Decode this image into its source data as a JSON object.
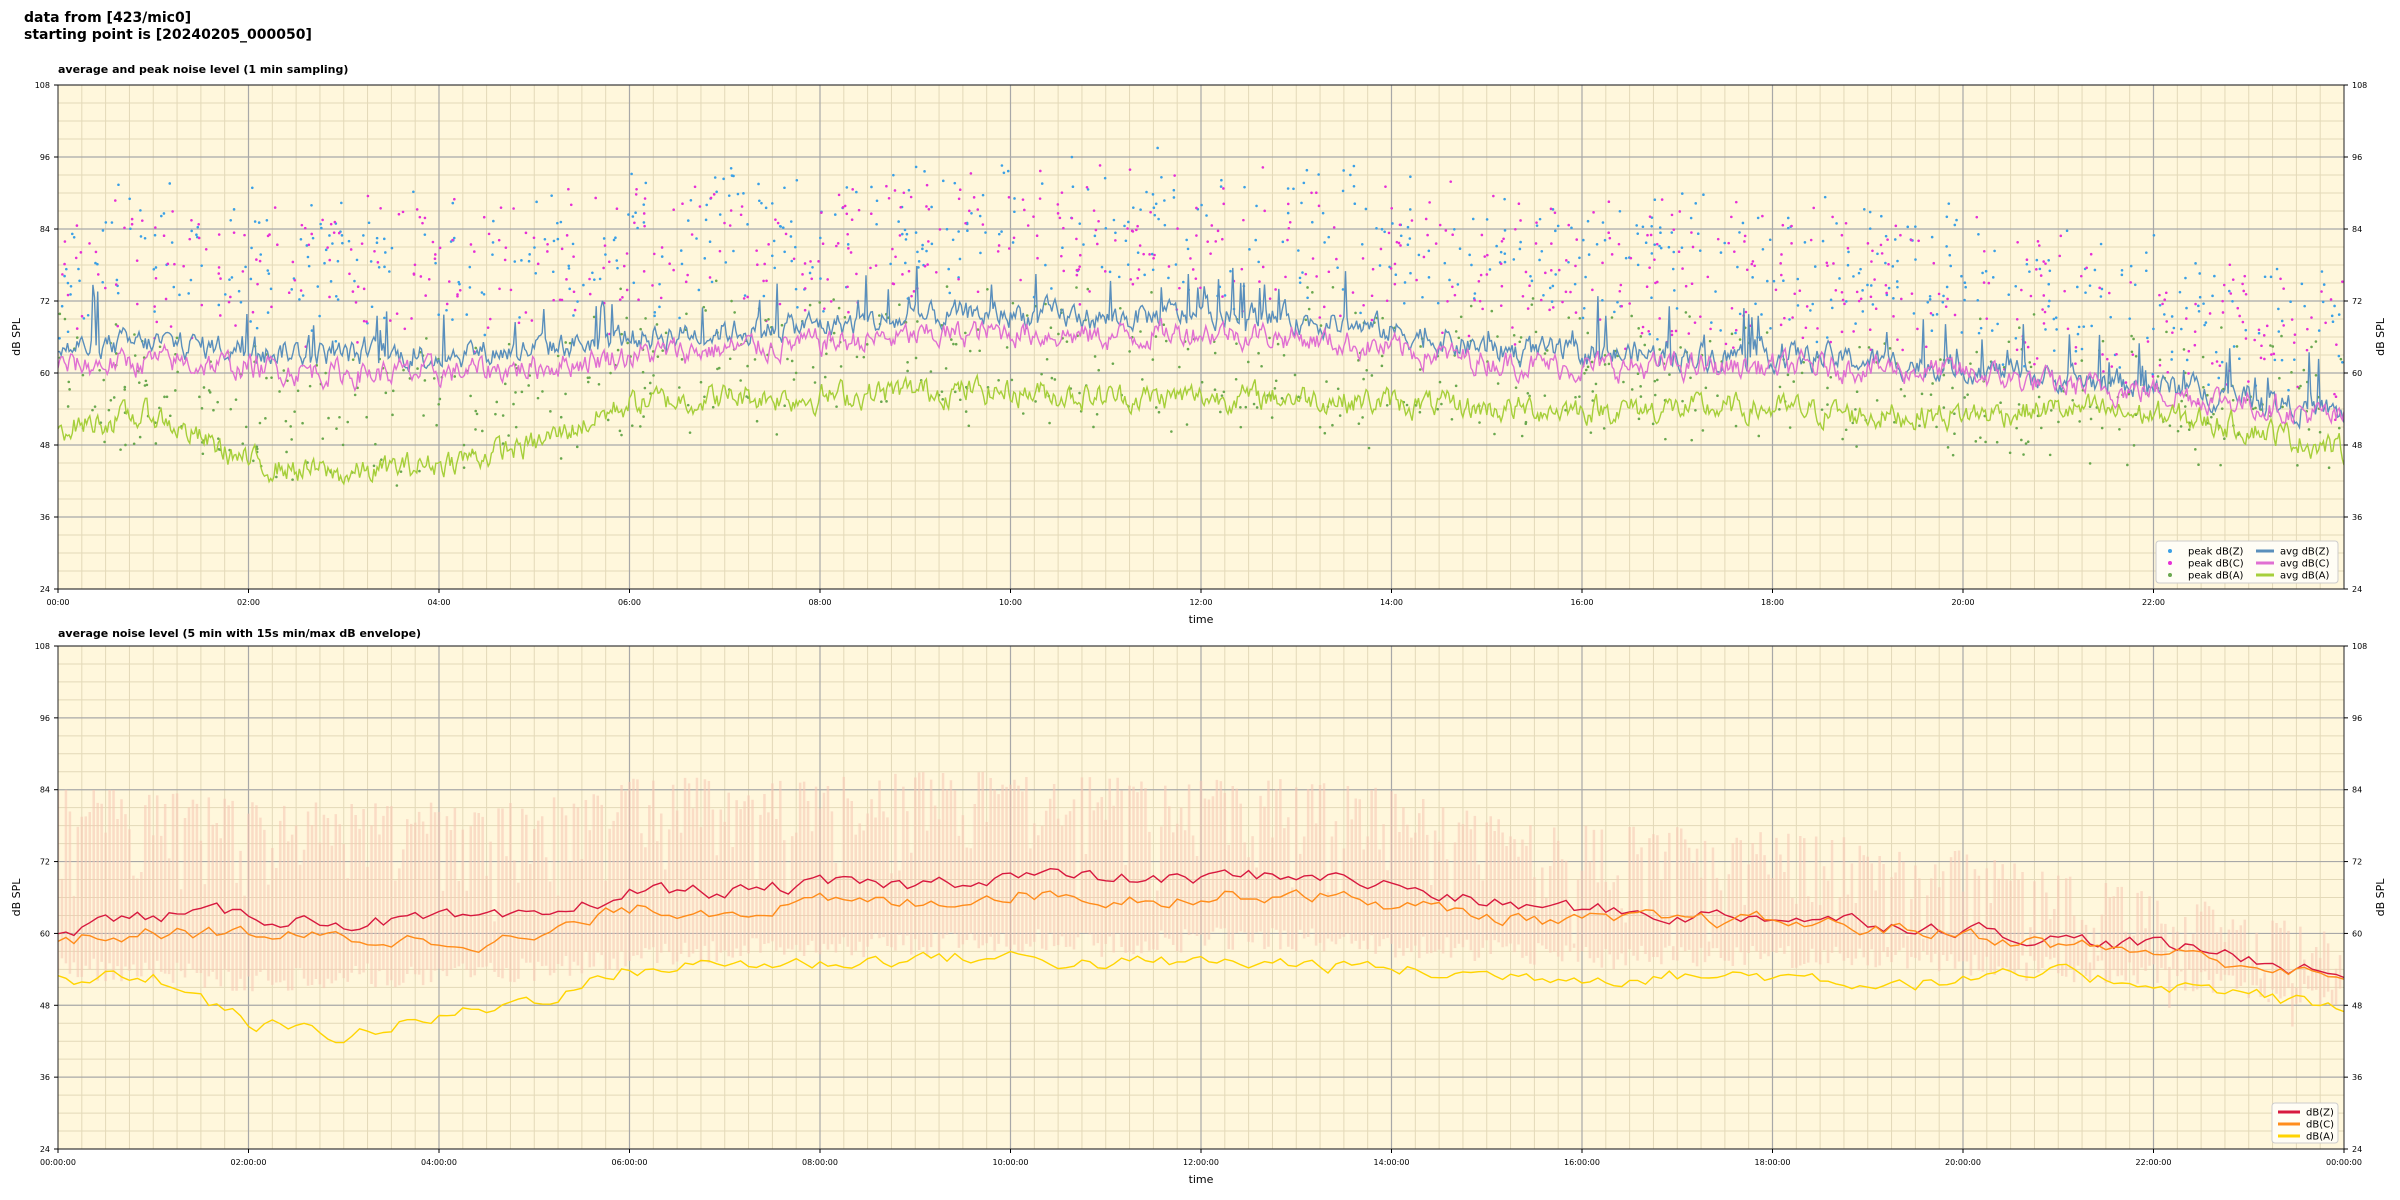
{
  "header": {
    "line1": "data from [423/mic0]",
    "line2": "starting point is [20240205_000050]"
  },
  "colors": {
    "background": "#fff7dc",
    "grid_major": "#a8a8a8",
    "grid_minor": "#e3d9b8",
    "z": "#5a8fbc",
    "c": "#e06fd2",
    "a": "#a6cf3a",
    "z2": "#d7193f",
    "c2": "#ff8c1a",
    "a2": "#ffd400",
    "envelope": "#f7c6b4"
  },
  "chart_data": [
    {
      "type": "line",
      "title": "average and peak noise level (1 min sampling)",
      "xlabel": "time",
      "ylabel": "dB SPL",
      "ylim": [
        24,
        108
      ],
      "yticks": [
        24,
        36,
        48,
        60,
        72,
        84,
        96,
        108
      ],
      "xlim_hours": [
        0,
        24
      ],
      "xtick_labels": [
        "00:00",
        "02:00",
        "04:00",
        "06:00",
        "08:00",
        "10:00",
        "12:00",
        "14:00",
        "16:00",
        "18:00",
        "20:00",
        "22:00"
      ],
      "grid": true,
      "legend_position": "bottom-right",
      "series": [
        {
          "name": "peak dB(Z)",
          "kind": "scatter",
          "color": "#3aa0e6",
          "x": [
            0,
            1,
            2,
            3,
            4,
            5,
            6,
            7,
            8,
            9,
            10,
            11,
            12,
            13,
            14,
            15,
            16,
            17,
            18,
            19,
            20,
            21,
            22,
            23,
            24
          ],
          "y": [
            79,
            80,
            80,
            78,
            79,
            79,
            81,
            82,
            83,
            84,
            85,
            84,
            84,
            83,
            82,
            80,
            79,
            78,
            78,
            77,
            76,
            73,
            70,
            68,
            66
          ]
        },
        {
          "name": "peak dB(C)",
          "kind": "scatter",
          "color": "#e62fd6",
          "x": [
            0,
            1,
            2,
            3,
            4,
            5,
            6,
            7,
            8,
            9,
            10,
            11,
            12,
            13,
            14,
            15,
            16,
            17,
            18,
            19,
            20,
            21,
            22,
            23,
            24
          ],
          "y": [
            77,
            78,
            78,
            76,
            77,
            77,
            79,
            80,
            81,
            82,
            83,
            82,
            82,
            81,
            80,
            78,
            77,
            76,
            76,
            75,
            74,
            71,
            68,
            66,
            64
          ]
        },
        {
          "name": "peak dB(A)",
          "kind": "scatter",
          "color": "#6aa84f",
          "x": [
            0,
            1,
            2,
            3,
            4,
            5,
            6,
            7,
            8,
            9,
            10,
            11,
            12,
            13,
            14,
            15,
            16,
            17,
            18,
            19,
            20,
            21,
            22,
            23,
            24
          ],
          "y": [
            60,
            58,
            52,
            52,
            53,
            55,
            62,
            62,
            62,
            63,
            63,
            62,
            62,
            62,
            61,
            60,
            59,
            59,
            59,
            58,
            57,
            58,
            57,
            56,
            54
          ]
        },
        {
          "name": "avg dB(Z)",
          "kind": "line",
          "color": "#5a8fbc",
          "x": [
            0,
            1,
            2,
            3,
            4,
            5,
            6,
            7,
            8,
            9,
            10,
            11,
            12,
            13,
            14,
            15,
            16,
            17,
            18,
            19,
            20,
            21,
            22,
            23,
            24
          ],
          "y": [
            64,
            65,
            64,
            63,
            63,
            64,
            66,
            67,
            68,
            69,
            70,
            69,
            70,
            69,
            67,
            64,
            63,
            63,
            63,
            62,
            61,
            59,
            58,
            56,
            53
          ]
        },
        {
          "name": "avg dB(C)",
          "kind": "line",
          "color": "#e06fd2",
          "x": [
            0,
            1,
            2,
            3,
            4,
            5,
            6,
            7,
            8,
            9,
            10,
            11,
            12,
            13,
            14,
            15,
            16,
            17,
            18,
            19,
            20,
            21,
            22,
            23,
            24
          ],
          "y": [
            61,
            62,
            61,
            60,
            60,
            61,
            63,
            64,
            65,
            66,
            67,
            66,
            67,
            66,
            64,
            62,
            61,
            61,
            61,
            61,
            60,
            58,
            57,
            55,
            52
          ]
        },
        {
          "name": "avg dB(A)",
          "kind": "line",
          "color": "#a6cf3a",
          "x": [
            0,
            1,
            2,
            3,
            4,
            5,
            6,
            7,
            8,
            9,
            10,
            11,
            12,
            13,
            14,
            15,
            16,
            17,
            18,
            19,
            20,
            21,
            22,
            23,
            24
          ],
          "y": [
            51,
            53,
            45,
            43,
            45,
            48,
            55,
            56,
            56,
            57,
            57,
            56,
            56,
            56,
            55,
            54,
            54,
            54,
            54,
            53,
            53,
            54,
            53,
            51,
            47
          ]
        }
      ]
    },
    {
      "type": "line",
      "title": "average noise level (5 min with 15s min/max dB envelope)",
      "xlabel": "time",
      "ylabel": "dB SPL",
      "ylim": [
        24,
        108
      ],
      "yticks": [
        24,
        36,
        48,
        60,
        72,
        84,
        96,
        108
      ],
      "xlim_hours": [
        0,
        24
      ],
      "xtick_labels": [
        "00:00:00",
        "02:00:00",
        "04:00:00",
        "06:00:00",
        "08:00:00",
        "10:00:00",
        "12:00:00",
        "14:00:00",
        "16:00:00",
        "18:00:00",
        "20:00:00",
        "22:00:00",
        "00:00:00"
      ],
      "grid": true,
      "legend_position": "bottom-right",
      "envelope": {
        "x": [
          0,
          1,
          2,
          3,
          4,
          5,
          6,
          7,
          8,
          9,
          10,
          11,
          12,
          13,
          14,
          15,
          16,
          17,
          18,
          19,
          20,
          21,
          22,
          23,
          24
        ],
        "low": [
          56,
          56,
          54,
          55,
          55,
          56,
          58,
          59,
          60,
          60,
          61,
          60,
          61,
          61,
          60,
          59,
          58,
          58,
          58,
          58,
          57,
          56,
          55,
          53,
          51
        ],
        "high": [
          84,
          84,
          82,
          82,
          82,
          82,
          86,
          86,
          86,
          87,
          87,
          86,
          86,
          86,
          84,
          80,
          78,
          78,
          77,
          76,
          74,
          70,
          67,
          64,
          60
        ]
      },
      "series": [
        {
          "name": "dB(Z)",
          "kind": "line",
          "color": "#d7193f",
          "x": [
            0,
            1,
            2,
            3,
            4,
            5,
            6,
            7,
            8,
            9,
            10,
            11,
            12,
            13,
            14,
            15,
            16,
            17,
            18,
            19,
            20,
            21,
            22,
            23,
            24
          ],
          "y": [
            61,
            63,
            63,
            62,
            62,
            62,
            67,
            67,
            68,
            68,
            70,
            69,
            69,
            70,
            68,
            65,
            64,
            63,
            63,
            62,
            61,
            59,
            58,
            56,
            53
          ]
        },
        {
          "name": "dB(C)",
          "kind": "line",
          "color": "#ff8c1a",
          "x": [
            0,
            1,
            2,
            3,
            4,
            5,
            6,
            7,
            8,
            9,
            10,
            11,
            12,
            13,
            14,
            15,
            16,
            17,
            18,
            19,
            20,
            21,
            22,
            23,
            24
          ],
          "y": [
            59,
            60,
            60,
            59,
            59,
            59,
            64,
            64,
            65,
            65,
            67,
            66,
            66,
            67,
            65,
            63,
            62,
            62,
            62,
            61,
            60,
            58,
            57,
            55,
            52
          ]
        },
        {
          "name": "dB(A)",
          "kind": "line",
          "color": "#ffd400",
          "x": [
            0,
            1,
            2,
            3,
            4,
            5,
            6,
            7,
            8,
            9,
            10,
            11,
            12,
            13,
            14,
            15,
            16,
            17,
            18,
            19,
            20,
            21,
            22,
            23,
            24
          ],
          "y": [
            52,
            53,
            45,
            43,
            46,
            49,
            54,
            55,
            55,
            56,
            56,
            55,
            55,
            55,
            54,
            53,
            53,
            53,
            53,
            52,
            52,
            53,
            52,
            50,
            47
          ]
        }
      ]
    }
  ]
}
